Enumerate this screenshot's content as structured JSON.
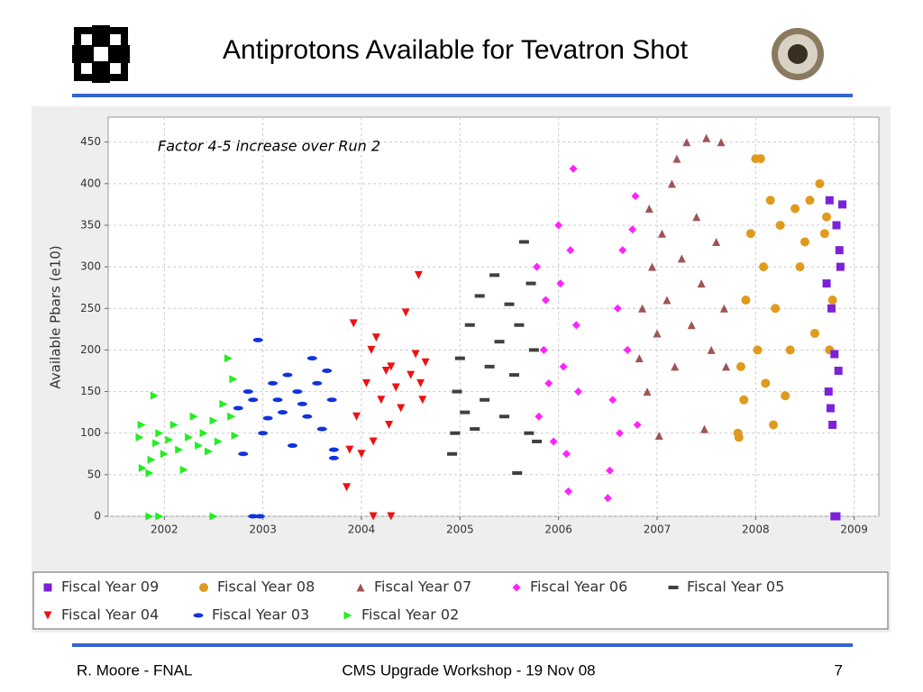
{
  "header": {
    "title": "Antiprotons Available for Tevatron Shot"
  },
  "footer": {
    "left": "R. Moore - FNAL",
    "center": "CMS Upgrade Workshop - 19 Nov 08",
    "right": "7"
  },
  "chart_data": {
    "type": "scatter",
    "annotation": "Factor 4-5 increase over Run 2",
    "ylabel": "Available Pbars (e10)",
    "xlim": [
      2001.43,
      2009.25
    ],
    "xticks": [
      2002,
      2003,
      2004,
      2005,
      2006,
      2007,
      2008,
      2009
    ],
    "ylim": [
      0,
      480
    ],
    "yticks": [
      0,
      50,
      100,
      150,
      200,
      250,
      300,
      350,
      400,
      450
    ],
    "grid": true,
    "series": [
      {
        "name": "Fiscal Year 09",
        "color": "#7b22d8",
        "marker": "square",
        "x": [
          2008.72,
          2008.74,
          2008.75,
          2008.77,
          2008.78,
          2008.8,
          2008.82,
          2008.84,
          2008.86,
          2008.88,
          2008.8,
          2008.82,
          2008.76,
          2008.85
        ],
        "values": [
          280,
          150,
          380,
          250,
          110,
          195,
          350,
          175,
          300,
          375,
          0,
          0,
          130,
          320
        ]
      },
      {
        "name": "Fiscal Year 08",
        "color": "#e09a1e",
        "marker": "circle",
        "x": [
          2007.82,
          2007.83,
          2007.85,
          2007.88,
          2007.9,
          2007.95,
          2008.0,
          2008.02,
          2008.05,
          2008.08,
          2008.1,
          2008.15,
          2008.18,
          2008.2,
          2008.25,
          2008.3,
          2008.35,
          2008.4,
          2008.45,
          2008.5,
          2008.55,
          2008.6,
          2008.65,
          2008.7,
          2008.75,
          2008.78,
          2008.72
        ],
        "values": [
          100,
          95,
          180,
          140,
          260,
          340,
          430,
          200,
          430,
          300,
          160,
          380,
          110,
          250,
          350,
          145,
          200,
          370,
          300,
          330,
          380,
          220,
          400,
          340,
          200,
          260,
          360
        ]
      },
      {
        "name": "Fiscal Year 07",
        "color": "#a05454",
        "marker": "triangle-up",
        "x": [
          2006.82,
          2006.85,
          2006.9,
          2006.92,
          2006.95,
          2007.0,
          2007.02,
          2007.05,
          2007.1,
          2007.15,
          2007.18,
          2007.2,
          2007.25,
          2007.3,
          2007.35,
          2007.4,
          2007.45,
          2007.48,
          2007.5,
          2007.55,
          2007.6,
          2007.65,
          2007.68,
          2007.7
        ],
        "values": [
          190,
          250,
          150,
          370,
          300,
          220,
          97,
          340,
          260,
          400,
          180,
          430,
          310,
          450,
          230,
          360,
          280,
          105,
          455,
          200,
          330,
          450,
          250,
          180
        ]
      },
      {
        "name": "Fiscal Year 06",
        "color": "#ff22ff",
        "marker": "diamond",
        "x": [
          2005.78,
          2005.8,
          2005.85,
          2005.87,
          2005.9,
          2005.95,
          2006.0,
          2006.02,
          2006.05,
          2006.08,
          2006.1,
          2006.12,
          2006.15,
          2006.18,
          2006.2,
          2006.5,
          2006.52,
          2006.55,
          2006.6,
          2006.62,
          2006.65,
          2006.7,
          2006.75,
          2006.78,
          2006.8
        ],
        "values": [
          300,
          120,
          200,
          260,
          160,
          90,
          350,
          280,
          180,
          75,
          30,
          320,
          418,
          230,
          150,
          22,
          55,
          140,
          250,
          100,
          320,
          200,
          345,
          385,
          110
        ]
      },
      {
        "name": "Fiscal Year 05",
        "color": "#404040",
        "marker": "dash",
        "x": [
          2004.92,
          2004.95,
          2004.97,
          2005.0,
          2005.05,
          2005.1,
          2005.15,
          2005.2,
          2005.25,
          2005.3,
          2005.35,
          2005.4,
          2005.45,
          2005.5,
          2005.55,
          2005.58,
          2005.6,
          2005.65,
          2005.7,
          2005.72,
          2005.75,
          2005.78
        ],
        "values": [
          75,
          100,
          150,
          190,
          125,
          230,
          105,
          265,
          140,
          180,
          290,
          210,
          120,
          255,
          170,
          52,
          230,
          330,
          100,
          280,
          200,
          90
        ]
      },
      {
        "name": "Fiscal Year 04",
        "color": "#ee1111",
        "marker": "triangle-down",
        "x": [
          2003.85,
          2003.88,
          2003.92,
          2003.95,
          2004.0,
          2004.05,
          2004.1,
          2004.12,
          2004.15,
          2004.2,
          2004.25,
          2004.28,
          2004.3,
          2004.35,
          2004.4,
          2004.45,
          2004.5,
          2004.55,
          2004.58,
          2004.6,
          2004.62,
          2004.65,
          2004.12,
          2004.3
        ],
        "values": [
          35,
          80,
          232,
          120,
          75,
          160,
          200,
          90,
          215,
          140,
          175,
          110,
          180,
          155,
          130,
          245,
          170,
          195,
          290,
          160,
          140,
          185,
          0,
          0
        ]
      },
      {
        "name": "Fiscal Year 03",
        "color": "#1133dd",
        "marker": "ellipse",
        "x": [
          2002.75,
          2002.8,
          2002.85,
          2002.9,
          2002.95,
          2003.0,
          2003.05,
          2003.1,
          2003.15,
          2003.2,
          2003.25,
          2003.3,
          2003.35,
          2003.4,
          2003.45,
          2003.5,
          2003.55,
          2003.6,
          2003.65,
          2003.7,
          2003.72,
          2003.72,
          2002.9,
          2002.97
        ],
        "values": [
          130,
          75,
          150,
          140,
          212,
          100,
          118,
          160,
          140,
          125,
          170,
          85,
          150,
          135,
          120,
          190,
          160,
          105,
          175,
          140,
          80,
          70,
          0,
          0
        ]
      },
      {
        "name": "Fiscal Year 02",
        "color": "#22ee22",
        "marker": "triangle-right",
        "x": [
          2001.75,
          2001.77,
          2001.78,
          2001.85,
          2001.87,
          2001.9,
          2001.92,
          2001.95,
          2002.0,
          2002.05,
          2002.1,
          2002.15,
          2002.2,
          2002.25,
          2002.3,
          2002.35,
          2002.4,
          2002.45,
          2002.5,
          2002.55,
          2002.6,
          2002.65,
          2002.68,
          2002.7,
          2002.72,
          2001.85,
          2001.95,
          2002.5
        ],
        "values": [
          95,
          110,
          58,
          52,
          68,
          145,
          88,
          100,
          75,
          92,
          110,
          80,
          56,
          95,
          120,
          85,
          100,
          78,
          115,
          90,
          135,
          190,
          120,
          165,
          97,
          0,
          0,
          0
        ]
      }
    ]
  }
}
